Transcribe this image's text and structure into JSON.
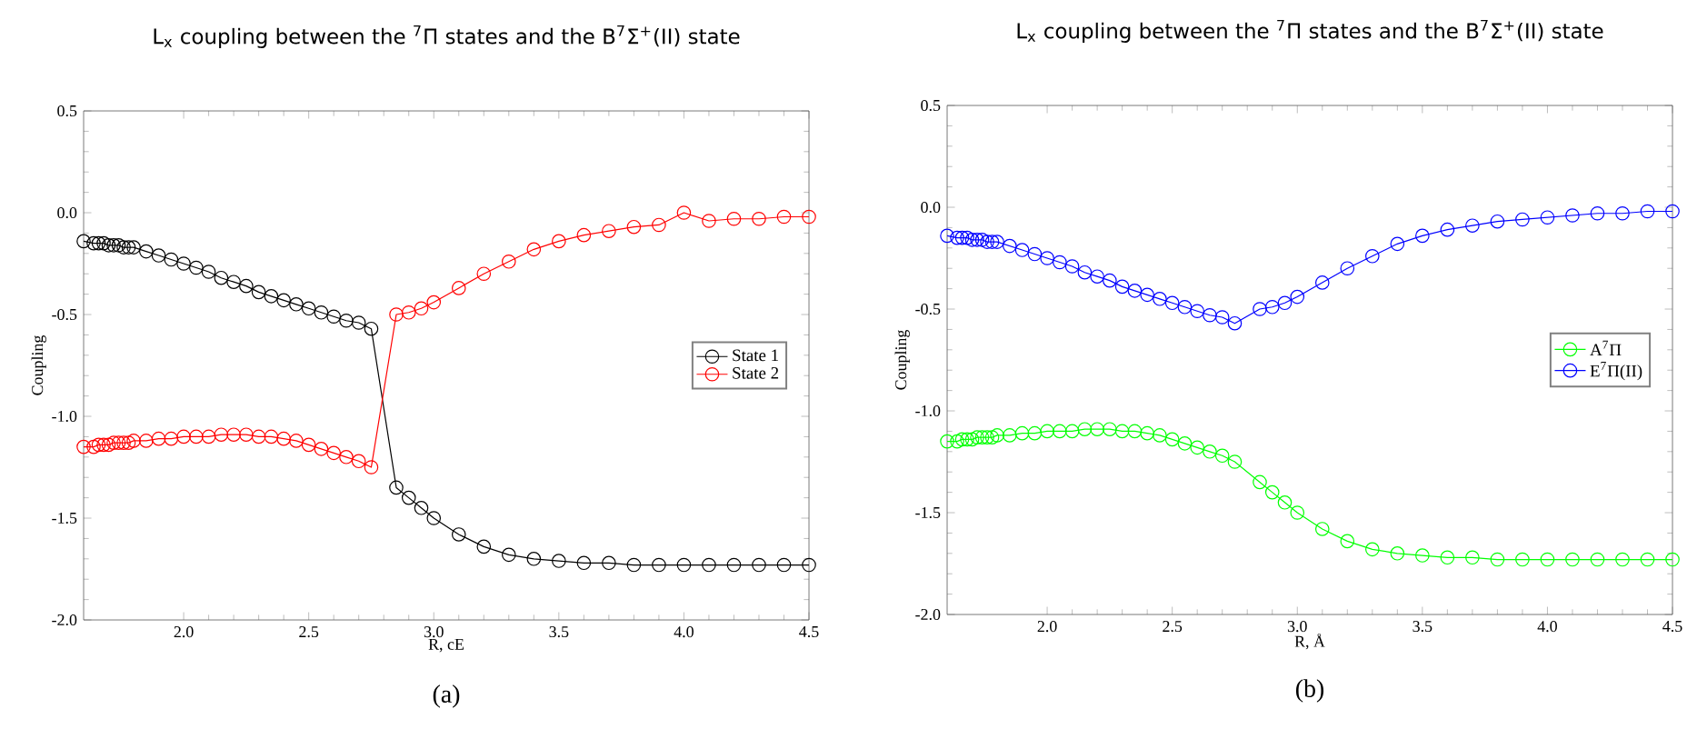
{
  "chart_data": [
    {
      "type": "line",
      "title": "L$_{x}$ coupling between the $^{7}$Π states and the B$^{7}$Σ$^{+}$(II) state",
      "xlabel": "R, cE",
      "ylabel": "Coupling",
      "annotations": [
        "(a)"
      ],
      "xlim": [
        1.6,
        4.5
      ],
      "ylim": [
        -2.0,
        0.5
      ],
      "xticks": [
        {
          "value": 2.0,
          "label": "2.0"
        },
        2.5,
        {
          "value": 3.0,
          "label": "3.0"
        },
        3.5,
        {
          "value": 4.0,
          "label": "4.0"
        },
        4.5
      ],
      "yticks": [
        {
          "value": -2.0,
          "label": "-2.0"
        },
        -1.5,
        {
          "value": -1.0,
          "label": "-1.0"
        },
        -0.5,
        {
          "value": 0.0,
          "label": "0.0"
        },
        0.5
      ],
      "marker": "circle",
      "line_style": "solid",
      "legend": "right",
      "grid": false,
      "x": [
        1.6,
        1.64,
        1.66,
        1.68,
        1.7,
        1.72,
        1.74,
        1.76,
        1.78,
        1.8,
        1.85,
        1.9,
        1.95,
        2.0,
        2.05,
        2.1,
        2.15,
        2.2,
        2.25,
        2.3,
        2.35,
        2.4,
        2.45,
        2.5,
        2.55,
        2.6,
        2.65,
        2.7,
        2.75,
        2.85,
        2.9,
        2.95,
        3.0,
        3.1,
        3.2,
        3.3,
        3.4,
        3.5,
        3.6,
        3.7,
        3.8,
        3.9,
        4.0,
        4.1,
        4.2,
        4.3,
        4.4,
        4.5
      ],
      "series": [
        {
          "name": "State 1",
          "color": "#000000",
          "values": [
            -0.14,
            -0.15,
            -0.15,
            -0.15,
            -0.16,
            -0.16,
            -0.16,
            -0.17,
            -0.17,
            -0.17,
            -0.19,
            -0.21,
            -0.23,
            -0.25,
            -0.27,
            -0.29,
            -0.32,
            -0.34,
            -0.36,
            -0.39,
            -0.41,
            -0.43,
            -0.45,
            -0.47,
            -0.49,
            -0.51,
            -0.53,
            -0.54,
            -0.57,
            -1.35,
            -1.4,
            -1.45,
            -1.5,
            -1.58,
            -1.64,
            -1.68,
            -1.7,
            -1.71,
            -1.72,
            -1.72,
            -1.73,
            -1.73,
            -1.73,
            -1.73,
            -1.73,
            -1.73,
            -1.73,
            -1.73
          ]
        },
        {
          "name": "State 2",
          "color": "#ff0000",
          "values": [
            -1.15,
            -1.15,
            -1.14,
            -1.14,
            -1.14,
            -1.13,
            -1.13,
            -1.13,
            -1.13,
            -1.12,
            -1.12,
            -1.11,
            -1.11,
            -1.1,
            -1.1,
            -1.1,
            -1.09,
            -1.09,
            -1.09,
            -1.1,
            -1.1,
            -1.11,
            -1.12,
            -1.14,
            -1.16,
            -1.18,
            -1.2,
            -1.22,
            -1.25,
            -0.5,
            -0.49,
            -0.47,
            -0.44,
            -0.37,
            -0.3,
            -0.24,
            -0.18,
            -0.14,
            -0.11,
            -0.09,
            -0.07,
            -0.06,
            0.0,
            -0.04,
            -0.03,
            -0.03,
            -0.02,
            -0.02
          ]
        }
      ]
    },
    {
      "type": "line",
      "title": "L$_{x}$ coupling between the $^{7}$Π states and the B$^{7}$Σ$^{+}$(II) state",
      "xlabel": "R, Å",
      "ylabel": "Coupling",
      "annotations": [
        "(b)"
      ],
      "xlim": [
        1.6,
        4.5
      ],
      "ylim": [
        -2.0,
        0.5
      ],
      "xticks": [
        {
          "value": 2.0,
          "label": "2.0"
        },
        2.5,
        {
          "value": 3.0,
          "label": "3.0"
        },
        3.5,
        {
          "value": 4.0,
          "label": "4.0"
        },
        4.5
      ],
      "yticks": [
        {
          "value": -2.0,
          "label": "-2.0"
        },
        -1.5,
        {
          "value": -1.0,
          "label": "-1.0"
        },
        -0.5,
        {
          "value": 0.0,
          "label": "0.0"
        },
        0.5
      ],
      "marker": "circle",
      "line_style": "solid",
      "legend": "right",
      "grid": false,
      "x": [
        1.6,
        1.64,
        1.66,
        1.68,
        1.7,
        1.72,
        1.74,
        1.76,
        1.78,
        1.8,
        1.85,
        1.9,
        1.95,
        2.0,
        2.05,
        2.1,
        2.15,
        2.2,
        2.25,
        2.3,
        2.35,
        2.4,
        2.45,
        2.5,
        2.55,
        2.6,
        2.65,
        2.7,
        2.75,
        2.85,
        2.9,
        2.95,
        3.0,
        3.1,
        3.2,
        3.3,
        3.4,
        3.5,
        3.6,
        3.7,
        3.8,
        3.9,
        4.0,
        4.1,
        4.2,
        4.3,
        4.4,
        4.5
      ],
      "series": [
        {
          "name": "A$^{7}$Π",
          "color": "#00ff00",
          "values": [
            -1.15,
            -1.15,
            -1.14,
            -1.14,
            -1.14,
            -1.13,
            -1.13,
            -1.13,
            -1.13,
            -1.12,
            -1.12,
            -1.11,
            -1.11,
            -1.1,
            -1.1,
            -1.1,
            -1.09,
            -1.09,
            -1.09,
            -1.1,
            -1.1,
            -1.11,
            -1.12,
            -1.14,
            -1.16,
            -1.18,
            -1.2,
            -1.22,
            -1.25,
            -1.35,
            -1.4,
            -1.45,
            -1.5,
            -1.58,
            -1.64,
            -1.68,
            -1.7,
            -1.71,
            -1.72,
            -1.72,
            -1.73,
            -1.73,
            -1.73,
            -1.73,
            -1.73,
            -1.73,
            -1.73,
            -1.73
          ]
        },
        {
          "name": "E$^{7}$Π(II)",
          "color": "#0000ff",
          "values": [
            -0.14,
            -0.15,
            -0.15,
            -0.15,
            -0.16,
            -0.16,
            -0.16,
            -0.17,
            -0.17,
            -0.17,
            -0.19,
            -0.21,
            -0.23,
            -0.25,
            -0.27,
            -0.29,
            -0.32,
            -0.34,
            -0.36,
            -0.39,
            -0.41,
            -0.43,
            -0.45,
            -0.47,
            -0.49,
            -0.51,
            -0.53,
            -0.54,
            -0.57,
            -0.5,
            -0.49,
            -0.47,
            -0.44,
            -0.37,
            -0.3,
            -0.24,
            -0.18,
            -0.14,
            -0.11,
            -0.09,
            -0.07,
            -0.06,
            -0.05,
            -0.04,
            -0.03,
            -0.03,
            -0.02,
            -0.02
          ]
        }
      ]
    }
  ]
}
